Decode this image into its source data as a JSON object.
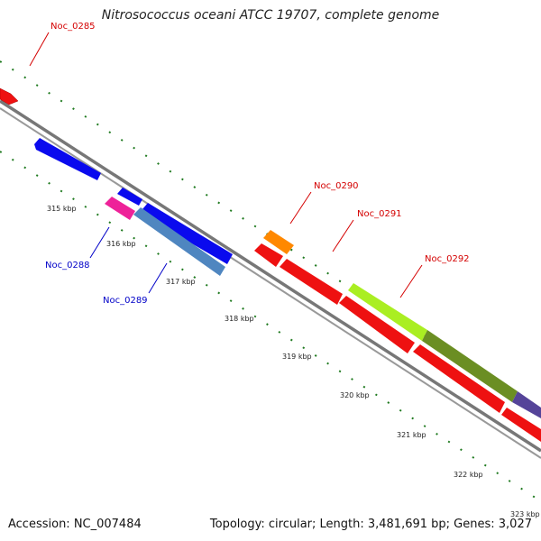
{
  "title": "Nitrosococcus oceani ATCC 19707, complete genome",
  "footer": {
    "accession": "Accession: NC_007484",
    "summary": "Topology: circular; Length: 3,481,691 bp; Genes: 3,027"
  },
  "genes": {
    "noc0285": "Noc_0285",
    "noc0288": "Noc_0288",
    "noc0289": "Noc_0289",
    "noc0290": "Noc_0290",
    "noc0291": "Noc_0291",
    "noc0292": "Noc_0292"
  },
  "ticks": [
    "315 kbp",
    "316 kbp",
    "317 kbp",
    "318 kbp",
    "319 kbp",
    "320 kbp",
    "321 kbp",
    "322 kbp",
    "323 kbp"
  ],
  "colors": {
    "backbone": "#888888",
    "tick": "#1f7a1f",
    "red_gene": "#ee1111",
    "blue_gene": "#0a0aee",
    "steel_gene": "#4f86c0",
    "pink_gene": "#ee2299",
    "orange_gene": "#ff8800",
    "lime_gene": "#aaee22",
    "olive_gene": "#6b8e23",
    "purple_gene": "#554499"
  }
}
